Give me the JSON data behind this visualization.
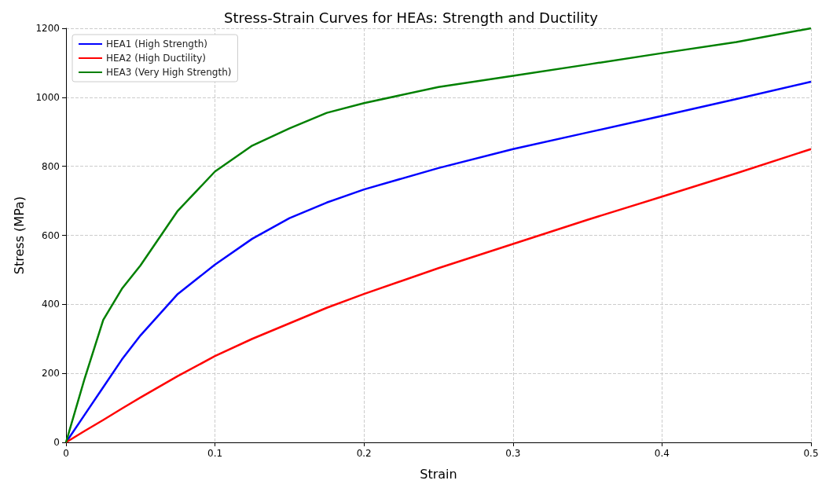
{
  "chart_data": {
    "type": "line",
    "title": "Stress-Strain Curves for HEAs: Strength and Ductility",
    "xlabel": "Strain",
    "ylabel": "Stress (MPa)",
    "x": [
      0,
      0.0125,
      0.025,
      0.0375,
      0.05,
      0.075,
      0.1,
      0.125,
      0.15,
      0.175,
      0.2,
      0.25,
      0.3,
      0.35,
      0.4,
      0.45,
      0.5
    ],
    "series": [
      {
        "name": "HEA1 (High Strength)",
        "color": "#0000ff",
        "values": [
          0,
          80,
          160,
          240,
          310,
          430,
          515,
          590,
          650,
          695,
          733,
          795,
          850,
          898,
          946,
          995,
          1045
        ]
      },
      {
        "name": "HEA2 (High Ductility)",
        "color": "#ff0000",
        "values": [
          0,
          33,
          65,
          98,
          130,
          192,
          250,
          300,
          345,
          390,
          430,
          505,
          575,
          645,
          712,
          780,
          850
        ]
      },
      {
        "name": "HEA3 (Very High Strength)",
        "color": "#008000",
        "values": [
          0,
          185,
          355,
          445,
          513,
          671,
          785,
          860,
          910,
          955,
          983,
          1030,
          1062,
          1095,
          1128,
          1160,
          1200
        ]
      }
    ],
    "xlim": [
      0,
      0.5
    ],
    "xticks": [
      0,
      0.1,
      0.2,
      0.3,
      0.4,
      0.5
    ],
    "ylim": [
      0,
      1200
    ],
    "yticks": [
      0,
      200,
      400,
      600,
      800,
      1000,
      1200
    ],
    "grid": true,
    "legend": "top left",
    "marker": "none",
    "line_style": "solid"
  }
}
